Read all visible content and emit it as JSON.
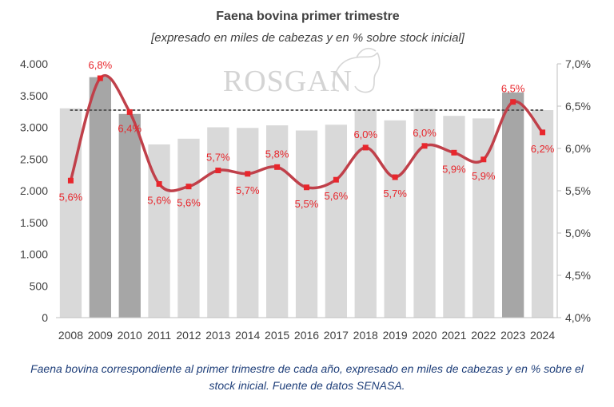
{
  "chart_data": {
    "type": "bar",
    "title": "Faena bovina primer trimestre",
    "subtitle": "[expresado en miles de cabezas y en % sobre stock inicial]",
    "watermark": "ROSGAN",
    "categories": [
      "2008",
      "2009",
      "2010",
      "2011",
      "2012",
      "2013",
      "2014",
      "2015",
      "2016",
      "2017",
      "2018",
      "2019",
      "2020",
      "2021",
      "2022",
      "2023",
      "2024"
    ],
    "series": [
      {
        "axis": "left",
        "values": [
          3300,
          3790,
          3210,
          2730,
          2820,
          3000,
          2990,
          3030,
          2950,
          3040,
          3280,
          3110,
          3290,
          3180,
          3140,
          3550,
          3270
        ],
        "color": "#d9d9d9",
        "highlight_color": "#a6a6a6",
        "highlight_categories": [
          "2009",
          "2010",
          "2023"
        ]
      },
      {
        "axis": "right",
        "type": "line",
        "values": [
          5.62,
          6.83,
          6.43,
          5.58,
          5.55,
          5.74,
          5.7,
          5.78,
          5.54,
          5.63,
          6.01,
          5.66,
          6.03,
          5.95,
          5.87,
          6.55,
          6.19
        ],
        "labels": [
          "5,6%",
          "6,8%",
          "6,4%",
          "5,6%",
          "5,6%",
          "5,7%",
          "5,7%",
          "5,8%",
          "5,5%",
          "5,6%",
          "6,0%",
          "5,7%",
          "6,0%",
          "5,9%",
          "5,9%",
          "6,5%",
          "6,2%"
        ],
        "color": "#c0404a",
        "marker_color": "#e8262c",
        "label_color": "#e8262c"
      }
    ],
    "reference_line": {
      "value": 3270,
      "axis": "left",
      "style": "dotted",
      "color": "#555555"
    },
    "y_left": {
      "ylim": [
        0,
        4000
      ],
      "ticks": [
        0,
        500,
        1000,
        1500,
        2000,
        2500,
        3000,
        3500,
        4000
      ],
      "tick_labels": [
        "0",
        "500",
        "1.000",
        "1.500",
        "2.000",
        "2.500",
        "3.000",
        "3.500",
        "4.000"
      ]
    },
    "y_right": {
      "ylim": [
        4.0,
        7.0
      ],
      "ticks": [
        4.0,
        4.5,
        5.0,
        5.5,
        6.0,
        6.5,
        7.0
      ],
      "tick_labels": [
        "4,0%",
        "4,5%",
        "5,0%",
        "5,5%",
        "6,0%",
        "6,5%",
        "7,0%"
      ]
    },
    "grid": false
  },
  "caption": {
    "line1": "Faena bovina correspondiente al primer trimestre de cada año, expresado en miles de cabezas y en % sobre el",
    "line2": "stock inicial. Fuente de datos SENASA."
  }
}
